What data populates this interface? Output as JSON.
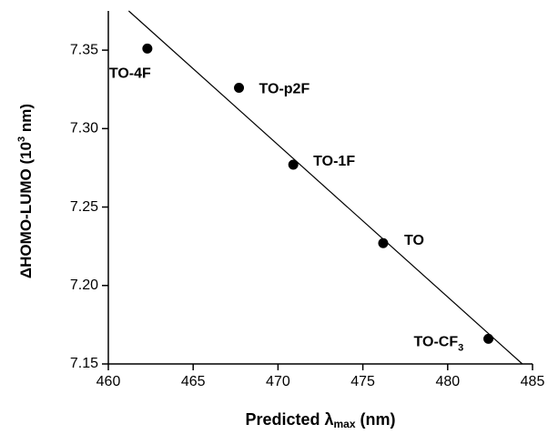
{
  "chart_data": {
    "type": "scatter",
    "x_label": [
      "Predicted λ",
      "max",
      " (nm)"
    ],
    "y_label": [
      "ΔHOMO-LUMO (10",
      "3",
      " nm)"
    ],
    "labels": [
      [
        "TO-4F"
      ],
      [
        "TO-p2F"
      ],
      [
        "TO-1F"
      ],
      [
        "TO"
      ],
      [
        "TO-CF",
        "3"
      ]
    ],
    "x": [
      462.3,
      467.7,
      470.9,
      476.2,
      482.4
    ],
    "y": [
      7.351,
      7.326,
      7.277,
      7.227,
      7.166
    ],
    "color": "#000000",
    "fit_line": {
      "x": [
        461.2,
        484.4
      ],
      "y": [
        7.375,
        7.15
      ]
    },
    "xlim": [
      460,
      485
    ],
    "xticks": [
      460,
      465,
      470,
      475,
      480,
      485
    ],
    "ylim": [
      7.15,
      7.375
    ],
    "yticks": [
      7.15,
      {
        "value": 7.2,
        "label": "7.20"
      },
      7.25,
      {
        "value": 7.3,
        "label": "7.30"
      },
      7.35
    ]
  }
}
